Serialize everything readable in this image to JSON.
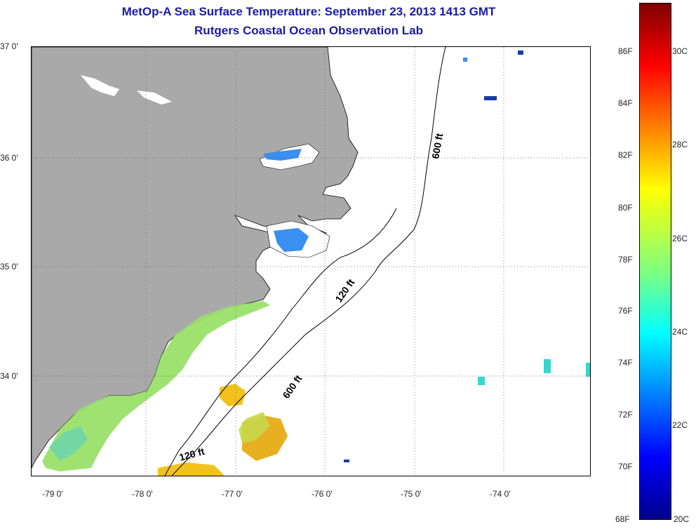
{
  "title": {
    "line1": "MetOp-A Sea Surface Temperature:  September 23, 2013 1413 GMT",
    "line2": "Rutgers Coastal Ocean Observation Lab"
  },
  "map": {
    "lat_labels": [
      "37 0'",
      "36 0'",
      "35 0'",
      "34 0'"
    ],
    "lon_labels": [
      "-79 0'",
      "-78 0'",
      "-77 0'",
      "-76 0'",
      "-75 0'",
      "-74 0'"
    ],
    "depth_labels": [
      "600 ft",
      "120 ft",
      "600 ft",
      "120 ft"
    ],
    "colors": {
      "land": "#a9a9a9",
      "cool_water": "#3a8ff0",
      "warm_water": "#9be06a",
      "hot_water": "#f2c21c"
    }
  },
  "colorbar": {
    "fahrenheit": [
      "86F",
      "84F",
      "82F",
      "80F",
      "78F",
      "76F",
      "74F",
      "72F",
      "70F",
      "68F"
    ],
    "celsius": [
      "30C",
      "28C",
      "26C",
      "24C",
      "22C",
      "20C"
    ],
    "min_label": "20C",
    "max_label": "30C"
  }
}
